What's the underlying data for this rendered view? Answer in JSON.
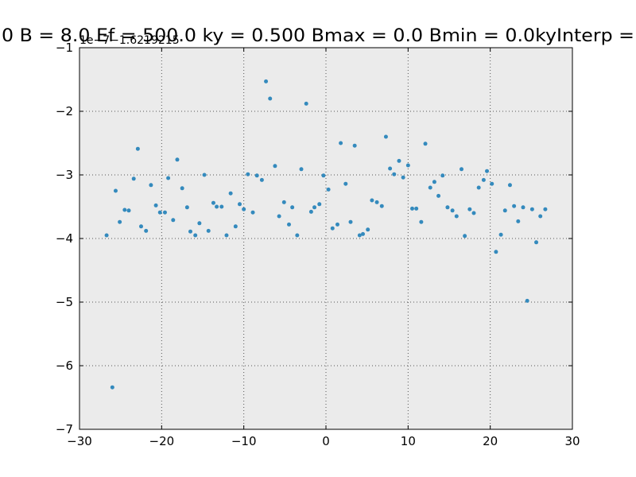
{
  "chart_data": {
    "type": "scatter",
    "title": "0 B = 8.0 Ef = 500.0 ky = 0.500 Bmax = 0.0 Bmin = 0.0kyInterp =",
    "offset_text": "1e−7−1.6219215",
    "color": "#348abd",
    "grid": true,
    "xlim": [
      -30,
      30
    ],
    "ylim": [
      -7,
      -1
    ],
    "xticks": [
      {
        "value": -30,
        "label": "−30"
      },
      {
        "value": -20,
        "label": "−20"
      },
      {
        "value": -10,
        "label": "−10"
      },
      0,
      10,
      20,
      30
    ],
    "yticks": [
      {
        "value": -7,
        "label": "−7"
      },
      {
        "value": -6,
        "label": "−6"
      },
      {
        "value": -5,
        "label": "−5"
      },
      {
        "value": -4,
        "label": "−4"
      },
      {
        "value": -3,
        "label": "−3"
      },
      {
        "value": -2,
        "label": "−2"
      },
      {
        "value": -1,
        "label": "−1"
      }
    ],
    "x": [
      -26.7,
      -26.0,
      -25.6,
      -25.1,
      -24.5,
      -24.0,
      -23.4,
      -22.9,
      -22.5,
      -21.9,
      -21.3,
      -20.7,
      -20.2,
      -19.6,
      -19.2,
      -18.6,
      -18.1,
      -17.5,
      -16.9,
      -16.5,
      -15.9,
      -15.4,
      -14.8,
      -14.3,
      -13.7,
      -13.3,
      -12.7,
      -12.1,
      -11.6,
      -11.0,
      -10.5,
      -10.0,
      -9.5,
      -8.9,
      -8.4,
      -7.8,
      -7.3,
      -6.8,
      -6.2,
      -5.7,
      -5.1,
      -4.5,
      -4.1,
      -3.5,
      -3.0,
      -2.4,
      -1.8,
      -1.4,
      -0.8,
      -0.3,
      0.3,
      0.8,
      1.4,
      1.8,
      2.4,
      3.0,
      3.5,
      4.1,
      4.5,
      5.1,
      5.6,
      6.2,
      6.8,
      7.3,
      7.8,
      8.3,
      8.9,
      9.4,
      10.0,
      10.5,
      11.0,
      11.6,
      12.1,
      12.7,
      13.2,
      13.7,
      14.2,
      14.8,
      15.4,
      15.9,
      16.5,
      16.9,
      17.5,
      18.0,
      18.6,
      19.2,
      19.6,
      20.2,
      20.7,
      21.3,
      21.8,
      22.4,
      22.9,
      23.4,
      24.0,
      24.5,
      25.1,
      25.6,
      26.1,
      26.7
    ],
    "values": [
      -3.95,
      -6.34,
      -3.25,
      -3.74,
      -3.55,
      -3.56,
      -3.06,
      -2.59,
      -3.81,
      -3.88,
      -3.16,
      -3.48,
      -3.59,
      -3.59,
      -3.05,
      -3.71,
      -2.76,
      -3.21,
      -3.51,
      -3.89,
      -3.95,
      -3.76,
      -3.0,
      -3.88,
      -3.44,
      -3.5,
      -3.5,
      -3.95,
      -3.29,
      -3.81,
      -3.46,
      -3.54,
      -2.99,
      -3.59,
      -3.01,
      -3.08,
      -1.53,
      -1.8,
      -2.86,
      -3.65,
      -3.43,
      -3.78,
      -3.51,
      -3.95,
      -2.91,
      -1.88,
      -3.58,
      -3.51,
      -3.46,
      -3.01,
      -3.23,
      -3.84,
      -3.78,
      -2.5,
      -3.14,
      -3.74,
      -2.54,
      -3.95,
      -3.93,
      -3.86,
      -3.4,
      -3.43,
      -3.49,
      -2.4,
      -2.9,
      -2.99,
      -2.78,
      -3.04,
      -2.85,
      -3.53,
      -3.53,
      -3.74,
      -2.51,
      -3.2,
      -3.11,
      -3.33,
      -3.01,
      -3.51,
      -3.56,
      -3.65,
      -2.91,
      -3.96,
      -3.54,
      -3.6,
      -3.2,
      -3.08,
      -2.94,
      -3.14,
      -4.21,
      -3.94,
      -3.56,
      -3.16,
      -3.49,
      -3.73,
      -3.51,
      -4.98,
      -3.54,
      -4.06,
      -3.65,
      -3.54
    ]
  }
}
